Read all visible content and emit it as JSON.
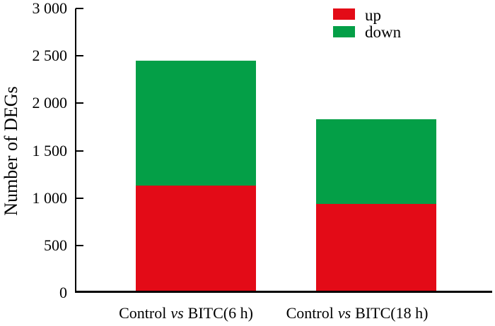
{
  "chart_data": {
    "type": "bar",
    "stacked": true,
    "title": "",
    "xlabel": "",
    "ylabel": "Number of DEGs",
    "ylim": [
      0,
      3000
    ],
    "ytick_step": 500,
    "ytick_labels": [
      "0",
      "500",
      "1 000",
      "1 500",
      "2 000",
      "2 500",
      "3 000"
    ],
    "grid": false,
    "axis_color": "#000000",
    "background": "#ffffff",
    "categories": [
      {
        "pre": "Control",
        "vs": "vs",
        "post": "BITC(6 h)"
      },
      {
        "pre": "Control",
        "vs": "vs",
        "post": "BITC(18 h)"
      }
    ],
    "series": [
      {
        "name": "up",
        "color": "#e30b17",
        "values": [
          1130,
          940
        ]
      },
      {
        "name": "down",
        "color": "#049f47",
        "values": [
          1320,
          890
        ]
      }
    ],
    "totals": [
      2450,
      1830
    ],
    "legend": {
      "position": "top-right",
      "entries": [
        {
          "label": "up",
          "color": "#e30b17"
        },
        {
          "label": "down",
          "color": "#049f47"
        }
      ]
    }
  }
}
